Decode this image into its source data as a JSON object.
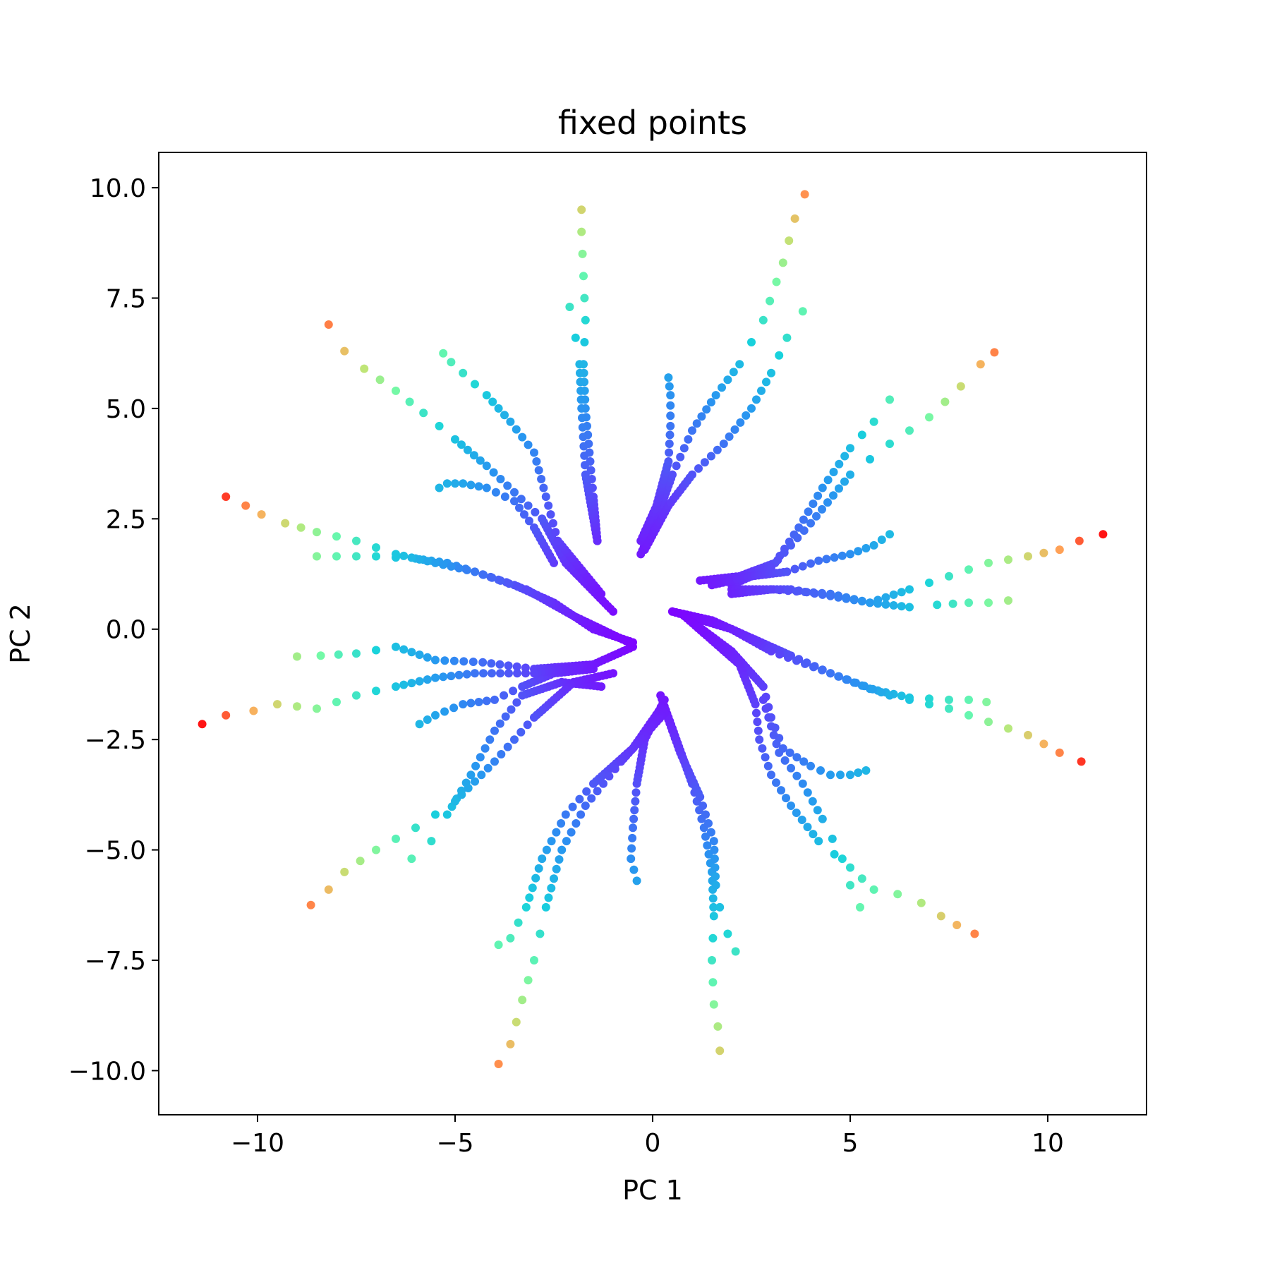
{
  "chart_data": {
    "type": "scatter",
    "title": "fixed points",
    "xlabel": "PC 1",
    "ylabel": "PC 2",
    "xlim": [
      -12.5,
      12.5
    ],
    "ylim": [
      -11.0,
      10.8
    ],
    "xticks": [
      -10,
      -5,
      0,
      5,
      10
    ],
    "xtick_labels": [
      "−10",
      "−5",
      "0",
      "5",
      "10"
    ],
    "yticks": [
      10.0,
      7.5,
      5.0,
      2.5,
      0.0,
      -2.5,
      -5.0,
      -7.5,
      -10.0
    ],
    "ytick_labels": [
      "10.0",
      "7.5",
      "5.0",
      "2.5",
      "0.0",
      "−2.5",
      "−5.0",
      "−7.5",
      "−10.0"
    ],
    "grid": false,
    "colormap": "rainbow",
    "marker_color_note": "points colored from violet (near origin) to red (far ends)",
    "branches": [
      {
        "points": [
          [
            -1.4,
            2.0
          ],
          [
            -1.5,
            3.0
          ],
          [
            -1.6,
            4.0
          ],
          [
            -1.7,
            5.0
          ],
          [
            -1.75,
            6.0
          ],
          [
            -1.7,
            7.0
          ],
          [
            -1.75,
            8.0
          ],
          [
            -1.8,
            9.0
          ],
          [
            -1.8,
            9.5
          ]
        ]
      },
      {
        "points": [
          [
            -1.4,
            2.0
          ],
          [
            -1.7,
            3.5
          ],
          [
            -1.8,
            5.0
          ],
          [
            -1.85,
            6.0
          ],
          [
            -1.95,
            6.6
          ],
          [
            -2.1,
            7.3
          ]
        ]
      },
      {
        "points": [
          [
            -0.3,
            1.7
          ],
          [
            0.1,
            2.5
          ],
          [
            0.5,
            3.5
          ],
          [
            1.0,
            4.5
          ],
          [
            1.6,
            5.3
          ],
          [
            2.2,
            6.0
          ],
          [
            2.8,
            7.0
          ],
          [
            3.3,
            8.3
          ],
          [
            3.6,
            9.3
          ],
          [
            3.85,
            9.85
          ]
        ]
      },
      {
        "points": [
          [
            -0.2,
            1.8
          ],
          [
            0.4,
            2.8
          ],
          [
            1.0,
            3.5
          ],
          [
            1.8,
            4.2
          ],
          [
            2.5,
            5.0
          ],
          [
            3.0,
            5.8
          ],
          [
            3.4,
            6.6
          ],
          [
            3.8,
            7.2
          ]
        ]
      },
      {
        "points": [
          [
            -0.3,
            2.0
          ],
          [
            0.1,
            2.8
          ],
          [
            0.4,
            3.8
          ],
          [
            0.45,
            4.6
          ],
          [
            0.45,
            5.3
          ],
          [
            0.4,
            5.7
          ]
        ]
      },
      {
        "points": [
          [
            1.2,
            1.1
          ],
          [
            2.2,
            1.2
          ],
          [
            3.1,
            1.5
          ],
          [
            3.7,
            2.3
          ],
          [
            4.3,
            3.2
          ],
          [
            5.0,
            4.1
          ],
          [
            5.6,
            4.7
          ],
          [
            6.0,
            5.2
          ]
        ]
      },
      {
        "points": [
          [
            2.0,
            1.0
          ],
          [
            3.0,
            1.4
          ],
          [
            4.0,
            2.4
          ],
          [
            5.0,
            3.5
          ],
          [
            6.0,
            4.2
          ],
          [
            7.0,
            4.8
          ],
          [
            7.8,
            5.5
          ],
          [
            8.3,
            6.0
          ],
          [
            8.65,
            6.27
          ]
        ]
      },
      {
        "points": [
          [
            1.5,
            1.0
          ],
          [
            2.5,
            1.2
          ],
          [
            3.4,
            1.3
          ],
          [
            4.2,
            1.55
          ],
          [
            5.0,
            1.7
          ],
          [
            5.6,
            1.9
          ],
          [
            6.0,
            2.15
          ]
        ]
      },
      {
        "points": [
          [
            2.0,
            0.9
          ],
          [
            3.5,
            0.9
          ],
          [
            4.5,
            0.75
          ],
          [
            5.5,
            0.6
          ],
          [
            6.5,
            0.9
          ],
          [
            7.5,
            1.2
          ],
          [
            8.5,
            1.5
          ],
          [
            9.5,
            1.65
          ],
          [
            10.3,
            1.8
          ],
          [
            10.8,
            2.0
          ],
          [
            11.4,
            2.15
          ]
        ]
      },
      {
        "points": [
          [
            2.0,
            0.8
          ],
          [
            3.0,
            0.9
          ],
          [
            4.5,
            0.8
          ],
          [
            5.5,
            0.6
          ],
          [
            6.5,
            0.5
          ],
          [
            7.2,
            0.55
          ],
          [
            8.0,
            0.6
          ],
          [
            8.5,
            0.6
          ],
          [
            9.0,
            0.65
          ]
        ]
      },
      {
        "points": [
          [
            0.5,
            0.4
          ],
          [
            1.5,
            0.2
          ],
          [
            2.5,
            -0.2
          ],
          [
            3.5,
            -0.6
          ],
          [
            4.5,
            -1.0
          ],
          [
            5.5,
            -1.35
          ],
          [
            6.5,
            -1.55
          ],
          [
            7.5,
            -1.6
          ],
          [
            8.0,
            -1.6
          ],
          [
            8.45,
            -1.65
          ]
        ]
      },
      {
        "points": [
          [
            0.5,
            0.4
          ],
          [
            2.0,
            0.0
          ],
          [
            3.0,
            -0.5
          ],
          [
            4.5,
            -1.0
          ],
          [
            6.0,
            -1.5
          ],
          [
            7.5,
            -1.8
          ],
          [
            8.5,
            -2.1
          ],
          [
            9.5,
            -2.4
          ],
          [
            10.3,
            -2.8
          ],
          [
            10.85,
            -3.0
          ]
        ]
      },
      {
        "points": [
          [
            0.8,
            0.3
          ],
          [
            2.0,
            -0.5
          ],
          [
            2.8,
            -1.3
          ],
          [
            3.0,
            -2.0
          ],
          [
            3.3,
            -2.7
          ],
          [
            4.0,
            -3.1
          ],
          [
            4.5,
            -3.3
          ],
          [
            5.0,
            -3.3
          ],
          [
            5.4,
            -3.2
          ]
        ]
      },
      {
        "points": [
          [
            0.8,
            0.3
          ],
          [
            2.2,
            -0.8
          ],
          [
            2.6,
            -1.7
          ],
          [
            2.7,
            -2.5
          ],
          [
            3.0,
            -3.3
          ],
          [
            3.5,
            -4.0
          ],
          [
            4.2,
            -4.8
          ],
          [
            5.0,
            -5.4
          ],
          [
            5.6,
            -5.9
          ],
          [
            6.2,
            -6.0
          ],
          [
            6.8,
            -6.2
          ],
          [
            7.3,
            -6.5
          ],
          [
            7.7,
            -6.7
          ],
          [
            8.15,
            -6.9
          ]
        ]
      },
      {
        "points": [
          [
            2.8,
            -1.6
          ],
          [
            3.2,
            -2.8
          ],
          [
            3.8,
            -3.5
          ],
          [
            4.3,
            -4.3
          ],
          [
            4.8,
            -5.2
          ],
          [
            5.0,
            -5.8
          ],
          [
            5.25,
            -6.3
          ]
        ]
      },
      {
        "points": [
          [
            0.2,
            -1.5
          ],
          [
            0.6,
            -2.5
          ],
          [
            1.0,
            -3.5
          ],
          [
            1.3,
            -4.5
          ],
          [
            1.5,
            -5.5
          ],
          [
            1.55,
            -6.5
          ],
          [
            1.5,
            -7.5
          ],
          [
            1.55,
            -8.5
          ],
          [
            1.65,
            -9.0
          ],
          [
            1.7,
            -9.55
          ]
        ]
      },
      {
        "points": [
          [
            0.3,
            -1.8
          ],
          [
            0.7,
            -2.8
          ],
          [
            1.2,
            -3.8
          ],
          [
            1.55,
            -4.8
          ],
          [
            1.6,
            -5.8
          ],
          [
            1.7,
            -6.3
          ],
          [
            1.9,
            -6.9
          ],
          [
            2.1,
            -7.3
          ]
        ]
      },
      {
        "points": [
          [
            0.3,
            -1.6
          ],
          [
            -0.2,
            -2.5
          ],
          [
            -0.4,
            -3.5
          ],
          [
            -0.5,
            -4.5
          ],
          [
            -0.55,
            -5.2
          ],
          [
            -0.4,
            -5.7
          ]
        ]
      },
      {
        "points": [
          [
            0.2,
            -1.8
          ],
          [
            -0.5,
            -2.7
          ],
          [
            -1.5,
            -3.5
          ],
          [
            -2.2,
            -4.2
          ],
          [
            -2.8,
            -5.2
          ],
          [
            -3.2,
            -6.3
          ],
          [
            -3.6,
            -7.0
          ],
          [
            -3.9,
            -7.15
          ]
        ]
      },
      {
        "points": [
          [
            0.3,
            -1.9
          ],
          [
            -0.8,
            -3.0
          ],
          [
            -1.7,
            -4.0
          ],
          [
            -2.3,
            -5.0
          ],
          [
            -2.7,
            -6.3
          ],
          [
            -3.0,
            -7.5
          ],
          [
            -3.3,
            -8.4
          ],
          [
            -3.6,
            -9.4
          ],
          [
            -3.9,
            -9.85
          ]
        ]
      },
      {
        "points": [
          [
            -1.3,
            -1.3
          ],
          [
            -2.3,
            -1.2
          ],
          [
            -3.3,
            -1.5
          ],
          [
            -4.0,
            -2.3
          ],
          [
            -4.6,
            -3.3
          ],
          [
            -5.2,
            -4.2
          ],
          [
            -5.6,
            -4.8
          ],
          [
            -6.1,
            -5.2
          ]
        ]
      },
      {
        "points": [
          [
            -1.5,
            -0.9
          ],
          [
            -2.5,
            -1.0
          ],
          [
            -3.3,
            -1.3
          ],
          [
            -4.0,
            -1.6
          ],
          [
            -4.8,
            -1.7
          ],
          [
            -5.5,
            -1.95
          ],
          [
            -5.9,
            -2.15
          ]
        ]
      },
      {
        "points": [
          [
            -0.5,
            -0.4
          ],
          [
            -1.5,
            -0.8
          ],
          [
            -3.0,
            -0.9
          ],
          [
            -4.3,
            -0.75
          ],
          [
            -5.5,
            -0.7
          ],
          [
            -6.5,
            -0.4
          ],
          [
            -7.5,
            -0.55
          ],
          [
            -8.4,
            -0.6
          ],
          [
            -9.0,
            -0.62
          ]
        ]
      },
      {
        "points": [
          [
            -1.5,
            -0.8
          ],
          [
            -3.0,
            -1.0
          ],
          [
            -4.5,
            -1.0
          ],
          [
            -5.5,
            -1.1
          ],
          [
            -6.5,
            -1.3
          ],
          [
            -7.5,
            -1.5
          ],
          [
            -8.5,
            -1.8
          ],
          [
            -9.5,
            -1.7
          ],
          [
            -10.1,
            -1.85
          ],
          [
            -10.8,
            -1.95
          ],
          [
            -11.4,
            -2.15
          ]
        ]
      },
      {
        "points": [
          [
            -1.0,
            -1.0
          ],
          [
            -2.0,
            -1.2
          ],
          [
            -3.0,
            -2.0
          ],
          [
            -4.0,
            -3.0
          ],
          [
            -5.0,
            -3.9
          ],
          [
            -6.0,
            -4.5
          ],
          [
            -7.0,
            -5.0
          ],
          [
            -7.8,
            -5.5
          ],
          [
            -8.2,
            -5.9
          ],
          [
            -8.65,
            -6.25
          ]
        ]
      },
      {
        "points": [
          [
            -0.5,
            -0.3
          ],
          [
            -1.5,
            0.0
          ],
          [
            -2.5,
            0.6
          ],
          [
            -3.5,
            1.0
          ],
          [
            -4.5,
            1.3
          ],
          [
            -5.2,
            1.5
          ],
          [
            -6.0,
            1.6
          ],
          [
            -7.0,
            1.65
          ],
          [
            -8.0,
            1.65
          ],
          [
            -8.5,
            1.65
          ]
        ]
      },
      {
        "points": [
          [
            -0.6,
            -0.3
          ],
          [
            -2.0,
            0.3
          ],
          [
            -3.2,
            0.9
          ],
          [
            -4.5,
            1.3
          ],
          [
            -5.5,
            1.5
          ],
          [
            -6.5,
            1.7
          ],
          [
            -7.5,
            2.0
          ],
          [
            -8.5,
            2.2
          ],
          [
            -9.3,
            2.4
          ],
          [
            -9.9,
            2.6
          ],
          [
            -10.3,
            2.8
          ],
          [
            -10.8,
            3.0
          ]
        ]
      },
      {
        "points": [
          [
            -2.5,
            1.5
          ],
          [
            -3.0,
            2.3
          ],
          [
            -3.5,
            2.9
          ],
          [
            -4.2,
            3.2
          ],
          [
            -4.8,
            3.3
          ],
          [
            -5.2,
            3.3
          ],
          [
            -5.4,
            3.2
          ]
        ]
      },
      {
        "points": [
          [
            -1.0,
            0.4
          ],
          [
            -2.2,
            1.5
          ],
          [
            -2.8,
            2.5
          ],
          [
            -3.5,
            3.1
          ],
          [
            -4.2,
            3.7
          ],
          [
            -5.0,
            4.3
          ],
          [
            -5.8,
            4.9
          ],
          [
            -6.5,
            5.4
          ],
          [
            -7.3,
            5.9
          ],
          [
            -7.8,
            6.3
          ],
          [
            -8.2,
            6.9
          ]
        ]
      },
      {
        "points": [
          [
            -1.3,
            0.8
          ],
          [
            -2.4,
            2.0
          ],
          [
            -2.7,
            3.0
          ],
          [
            -3.0,
            4.0
          ],
          [
            -3.6,
            4.7
          ],
          [
            -4.2,
            5.3
          ],
          [
            -4.8,
            5.8
          ],
          [
            -5.1,
            6.05
          ],
          [
            -5.3,
            6.25
          ]
        ]
      }
    ]
  }
}
